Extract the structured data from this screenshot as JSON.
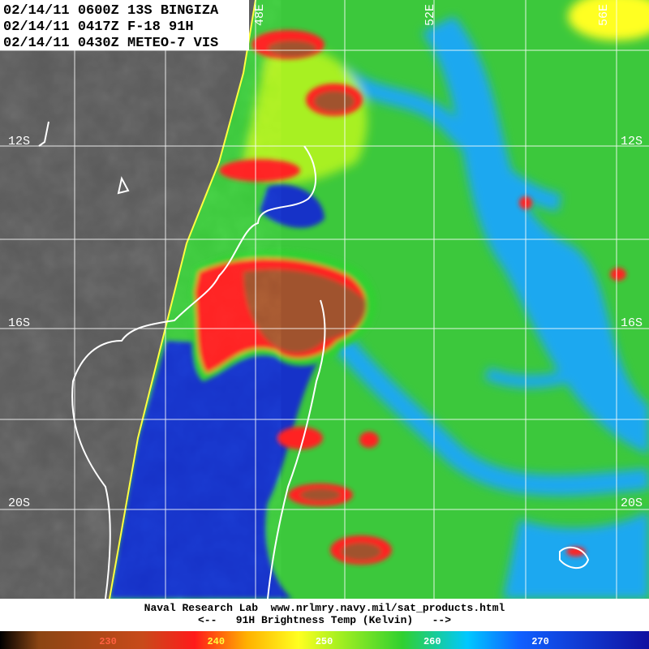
{
  "header": {
    "lines": [
      "02/14/11 0600Z 13S BINGIZA",
      "02/14/11 0417Z F-18 91H",
      "02/14/11 0430Z METEO-7 VIS"
    ]
  },
  "grid": {
    "lon_labels": [
      "48E",
      "52E",
      "56E"
    ],
    "lat_labels": [
      "12S",
      "16S",
      "20S"
    ]
  },
  "footer": {
    "credit": "Naval Research Lab  www.nrlmry.navy.mil/sat_products.html",
    "caption": "<--   91H Brightness Temp (Kelvin)   -->"
  },
  "colorbar": {
    "ticks": [
      230,
      240,
      250,
      260,
      270
    ]
  }
}
